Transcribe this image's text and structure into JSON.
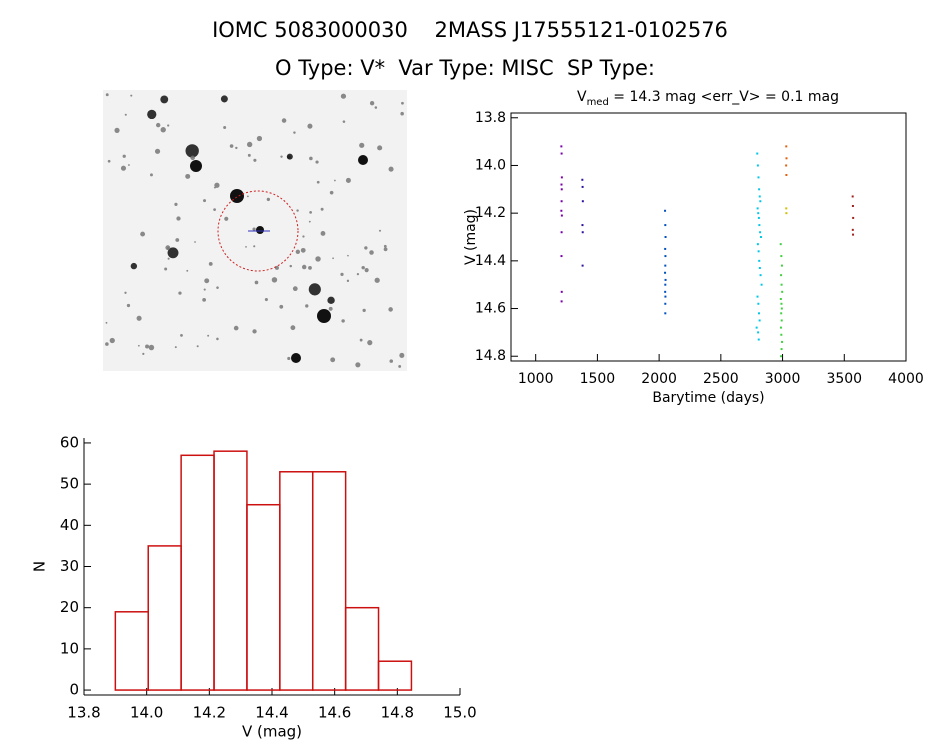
{
  "header": {
    "title": "IOMC 5083000030    2MASS J17555121-0102576",
    "subtitle": "O Type: V*  Var Type: MISC  SP Type:"
  },
  "chart_data": [
    {
      "type": "scatter",
      "title": {
        "main": "V",
        "subscript": "med",
        "rest": " = 14.3 mag <err_V> = 0.1 mag"
      },
      "xlabel": "Barytime (days)",
      "ylabel": "V (mag)",
      "xlim": [
        800,
        4000
      ],
      "xticks": [
        1000,
        1500,
        2000,
        2500,
        3000,
        3500,
        4000
      ],
      "ylim": [
        14.82,
        13.78
      ],
      "yticks": [
        13.8,
        {
          "value": 14,
          "label": "14.0"
        },
        14.2,
        14.4,
        14.6,
        14.8
      ],
      "series": [
        {
          "color": "#7a00a8",
          "x": [
            1208,
            1210,
            1212,
            1209,
            1211,
            1210,
            1208,
            1212,
            1210,
            1209,
            1211,
            1210
          ],
          "values": [
            13.92,
            13.95,
            14.05,
            14.08,
            14.1,
            14.15,
            14.19,
            14.21,
            14.28,
            14.38,
            14.53,
            14.57
          ]
        },
        {
          "color": "#3010a0",
          "x": [
            1378,
            1380,
            1382,
            1379,
            1381,
            1380
          ],
          "values": [
            14.06,
            14.09,
            14.15,
            14.25,
            14.28,
            14.42
          ]
        },
        {
          "color": "#0050c0",
          "x": [
            2048,
            2050,
            2052,
            2049,
            2051,
            2050,
            2048,
            2052,
            2050,
            2049,
            2051,
            2050,
            2050
          ],
          "values": [
            14.19,
            14.25,
            14.3,
            14.35,
            14.38,
            14.42,
            14.45,
            14.48,
            14.5,
            14.53,
            14.55,
            14.58,
            14.62
          ]
        },
        {
          "color": "#00c8e8",
          "x": [
            2795,
            2800,
            2805,
            2810,
            2815,
            2820,
            2798,
            2803,
            2808,
            2812,
            2818,
            2825,
            2800,
            2806,
            2811,
            2816,
            2822,
            2830,
            2797,
            2804,
            2809,
            2814,
            2790,
            2802,
            2807
          ],
          "values": [
            13.95,
            14.0,
            14.05,
            14.1,
            14.13,
            14.15,
            14.18,
            14.2,
            14.22,
            14.25,
            14.28,
            14.3,
            14.33,
            14.36,
            14.4,
            14.43,
            14.46,
            14.5,
            14.55,
            14.58,
            14.62,
            14.65,
            14.68,
            14.7,
            14.73
          ]
        },
        {
          "color": "#40d040",
          "x": [
            2985,
            2990,
            2995,
            2988,
            2992,
            2997,
            2986,
            2991,
            2994,
            2989,
            2993,
            2987,
            2990,
            2996,
            2992,
            2988
          ],
          "values": [
            14.33,
            14.38,
            14.42,
            14.46,
            14.5,
            14.53,
            14.56,
            14.58,
            14.6,
            14.62,
            14.65,
            14.68,
            14.71,
            14.74,
            14.77,
            14.8
          ]
        },
        {
          "color": "#e06010",
          "x": [
            3030,
            3032,
            3029,
            3031
          ],
          "values": [
            13.92,
            13.97,
            14.0,
            14.04
          ]
        },
        {
          "color": "#d0c000",
          "x": [
            3030,
            3031
          ],
          "values": [
            14.18,
            14.2
          ]
        },
        {
          "color": "#a02020",
          "x": [
            3568,
            3570,
            3572,
            3569,
            3571
          ],
          "values": [
            14.13,
            14.17,
            14.22,
            14.27,
            14.29
          ]
        }
      ]
    },
    {
      "type": "histogram",
      "xlabel": "V (mag)",
      "ylabel": "N",
      "color": "#cc1010",
      "xlim": [
        13.8,
        15
      ],
      "xticks": [
        13.8,
        {
          "value": 14,
          "label": "14.0"
        },
        14.2,
        14.4,
        14.6,
        14.8,
        {
          "value": 15,
          "label": "15.0"
        }
      ],
      "ylim": [
        -1.2,
        61.2
      ],
      "yticks": [
        0,
        10,
        20,
        30,
        40,
        50,
        60
      ],
      "bins": [
        13.9,
        14.005,
        14.11,
        14.215,
        14.32,
        14.425,
        14.53,
        14.635,
        14.74,
        14.845
      ],
      "values": [
        19,
        35,
        57,
        58,
        45,
        53,
        53,
        20,
        7
      ]
    }
  ]
}
